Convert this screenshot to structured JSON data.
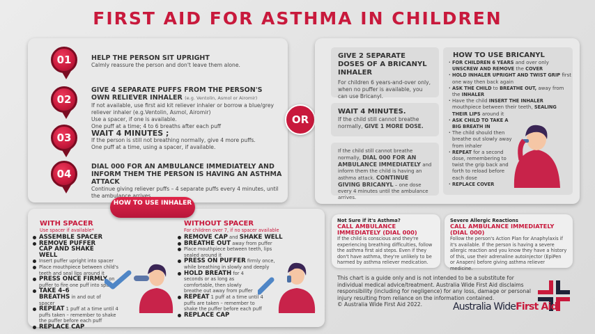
{
  "title": "FIRST AID FOR ASTHMA IN CHILDREN",
  "steps": [
    {
      "num": "01",
      "title": "HELP THE PERSON SIT UPRIGHT",
      "lines": [
        "Calmly reassure the person and don't leave them alone."
      ]
    },
    {
      "num": "02",
      "title": "GIVE 4 SEPARATE PUFFS FROM THE PERSON'S OWN RELIEVER INHALER",
      "note": "(e.g. Ventolin, Asmol or Airomir)",
      "lines": [
        "If not available, use first aid kit reliever inhaler or borrow a blue/grey reliever inhaler (e.g.Ventolin, Asmol, Airomir)",
        "Use a spacer, if one is available.",
        "One puff at a time; 4 to 6 breaths after each puff"
      ]
    },
    {
      "num": "03",
      "title": "WAIT 4 MINUTES ;",
      "lines": [
        "If the person is still not breathing normally, give 4 more puffs.",
        "One puff at a time, using a spacer, if available."
      ]
    },
    {
      "num": "04",
      "title": "DIAL 000 FOR AN AMBULANCE IMMEDIATELY AND INFORM THEM THE PERSON IS HAVING AN ASTHMA ATTACK",
      "lines": [
        "Continue giving reliever puffs – 4 separate puffs every 4 minutes, until the ambulance arrives."
      ]
    }
  ],
  "or_label": "OR",
  "bricanyl": {
    "box1": {
      "title": "GIVE 2 SEPARATE DOSES OF A BRICANYL INHALER",
      "text": "For children 6 years-and-over only, when no puffer is available, you can use Bricanyl."
    },
    "box2": {
      "title": "WAIT 4 MINUTES.",
      "text": "If the child still cannot breathe normally,",
      "bold": "GIVE 1 MORE DOSE."
    },
    "box3": {
      "t1": "If the child still cannot breathe normally,",
      "b1": "DIAL 000 FOR AN AMBULANCE IMMEDIATELY",
      "t2": "and inform them the child is having an asthma attack.",
      "b2": "CONTINUE GIVING BRICANYL",
      "t3": "– one dose every 4 minutes until the ambulance arrives."
    },
    "howto": {
      "title": "HOW TO USE BRICANYL",
      "items": [
        {
          "b": "FOR CHILDREN 6 YEARS",
          "t": "and over only"
        },
        {
          "b": "UNSCREW AND REMOVE",
          "t": "the",
          "b2": "COVER"
        },
        {
          "b": "HOLD INHALER UPRIGHT AND TWIST GRIP",
          "t": "first one way then back again"
        },
        {
          "b": "ASK THE CHILD",
          "t": "to",
          "b2": "BREATHE OUT,",
          "t2": "away from the",
          "b3": "INHALER"
        },
        {
          "t": "Have the child",
          "b": "INSERT THE INHALER",
          "t2": "mouthpiece between their teeth,",
          "b2": "SEALING THEIR LIPS",
          "t3": "around it"
        },
        {
          "b": "ASK CHILD TO TAKE A BIG BREATH IN"
        },
        {
          "t": "The child should then breathe out slowly away from inhaler"
        },
        {
          "b": "REPEAT",
          "t": "for a second dose, remembering to twist the grip back and forth to reload before each dose"
        },
        {
          "b": "REPLACE COVER"
        }
      ]
    }
  },
  "inhaler_button": "HOW TO USE INHALER",
  "with_spacer": {
    "title": "WITH SPACER",
    "subtitle": "Use spacer if available*",
    "items": [
      {
        "b": "ASSEMBLE SPACER"
      },
      {
        "b": "REMOVE PUFFER CAP AND SHAKE WELL"
      },
      {
        "t": "Insert puffer upright into spacer"
      },
      {
        "t": "Place mouthpiece between child's teeth and seal lips around it"
      },
      {
        "b": "PRESS ONCE FIRMLY",
        "t": "on puffer to fire one puff into spacer"
      },
      {
        "b": "TAKE 4–6 BREATHS",
        "t": "in and out of spacer"
      },
      {
        "b": "REPEAT",
        "t": "1 puff at a time until 4 puffs taken – remember to shake the puffer before each puff"
      },
      {
        "b": "REPLACE CAP"
      }
    ]
  },
  "without_spacer": {
    "title": "WITHOUT SPACER",
    "subtitle": "For children over 7, if no spacer available",
    "items": [
      {
        "b": "REMOVE CAP",
        "t": "and",
        "b2": "SHAKE WELL"
      },
      {
        "b": "BREATHE OUT",
        "t": "away from puffer"
      },
      {
        "t": "Place mouthpiece between teeth, lips sealed around it"
      },
      {
        "b": "PRESS ON PUFFER",
        "t": "firmly once, while breathing in slowly and deeply"
      },
      {
        "b": "HOLD BREATH",
        "t": "for 4 seconds or as long as comfortable, then slowly breathe out away from puffer"
      },
      {
        "b": "REPEAT",
        "t": "1 puff at a time until 4 puffs are taken – remember to shake the puffer before each puff"
      },
      {
        "b": "REPLACE CAP"
      }
    ]
  },
  "alerts": [
    {
      "title": "Not Sure if it's Asthma?",
      "call": "CALL AMBULANCE IMMEDIATELY (DIAL 000)",
      "text": "If the child is conscious and they're experiencing breathing difficulties, follow the asthma first aid steps. Even if they don't have asthma, they're unlikely to be harmed by asthma reliever medication."
    },
    {
      "title": "Severe Allergic Reactions",
      "call": "CALL AMBULANCE IMMEDIATELY (DIAL 000)",
      "text": "Follow the person's Action Plan for Anaphylaxis if it's available. If the person is having a severe allergic reaction and you know they have a history of this, use their adrenaline autoinjector (EpiPen or Anapen) before giving asthma reliever medicine."
    }
  ],
  "disclaimer": "This chart is a guide only and is not intended to be a substitute for individual medical advice/treatment. Australia Wide First Aid disclaims responsibility (including for negligence) for any loss, damage or personal injury resulting from reliance on the information contained.",
  "copyright": "© Australia Wide First Aid 2022.",
  "logo": {
    "part1": "Australia Wide",
    "part2": "First Aid"
  },
  "colors": {
    "brand_red": "#c8193c",
    "navy": "#1e2238"
  }
}
